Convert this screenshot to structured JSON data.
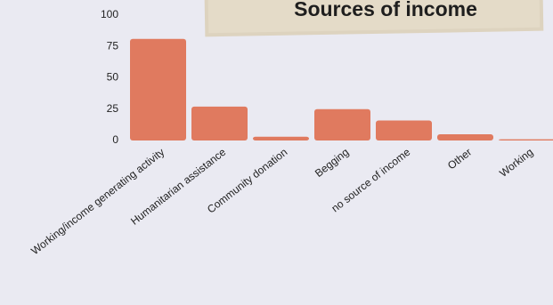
{
  "chart_data": {
    "type": "bar",
    "title": "Sources of income",
    "categories": [
      "Working/income generating activity",
      "Humanitarian assistance",
      "Community donation",
      "Begging",
      "no source of income",
      "Other",
      "Working"
    ],
    "values": [
      81,
      27,
      3,
      25,
      16,
      5,
      1
    ],
    "color": "#e07a5f",
    "ylim": [
      0,
      100
    ],
    "yticks": [
      0,
      25,
      50,
      75,
      100
    ],
    "grid": false
  }
}
